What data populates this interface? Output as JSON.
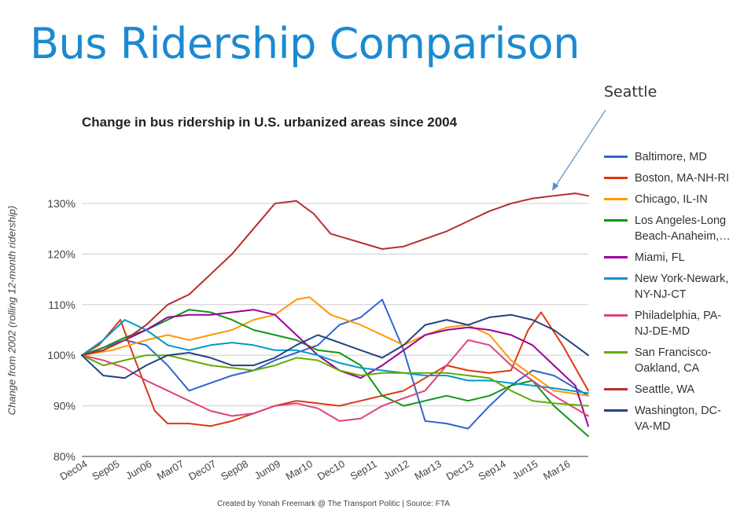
{
  "slide": {
    "title": "Bus Ridership Comparison",
    "callout_label": "Seattle"
  },
  "chart_data": {
    "type": "line",
    "title": "Change in bus ridership in U.S. urbanized areas since 2004",
    "xlabel": "",
    "ylabel": "Change from 2002 (rolling 12-month ridership)",
    "credit": "Created by Yonah Freemark @ The Transport Politic | Source: FTA",
    "ylim": [
      80,
      130
    ],
    "yticks": [
      80,
      90,
      100,
      110,
      120,
      130
    ],
    "ytick_labels": [
      "80%",
      "90%",
      "100%",
      "110%",
      "120%",
      "130%"
    ],
    "x_range": [
      0,
      11.8
    ],
    "x_ticks": [
      0,
      0.75,
      1.5,
      2.25,
      3,
      3.75,
      4.5,
      5.25,
      6,
      6.75,
      7.5,
      8.25,
      9,
      9.75,
      10.5,
      11.25
    ],
    "x_tick_labels": [
      "Dec04",
      "Sep05",
      "Jun06",
      "Mar07",
      "Dec07",
      "Sep08",
      "Jun09",
      "Mar10",
      "Dec10",
      "Sep11",
      "Jun12",
      "Mar13",
      "Dec13",
      "Sep14",
      "Jun15",
      "Mar16"
    ],
    "grid": true,
    "legend_position": "right",
    "annotation": {
      "text": "Seattle",
      "points_to": "Seattle, WA"
    },
    "series": [
      {
        "name": "Baltimore, MD",
        "color": "#3366cc",
        "x": [
          0,
          0.5,
          1,
          1.5,
          2,
          2.5,
          3,
          3.5,
          4,
          4.5,
          5,
          5.5,
          6,
          6.5,
          7,
          7.5,
          8,
          8.5,
          9,
          9.5,
          10,
          10.5,
          11,
          11.8
        ],
        "values": [
          100,
          101.5,
          103,
          102,
          98,
          93,
          94.5,
          96,
          97,
          99,
          100.5,
          102,
          106,
          107.5,
          111,
          101,
          87,
          86.5,
          85.5,
          90,
          94,
          97,
          96,
          92
        ]
      },
      {
        "name": "Boston, MA-NH-RI",
        "color": "#dc3912",
        "x": [
          0,
          0.4,
          0.9,
          1.2,
          1.7,
          2,
          2.5,
          3,
          3.5,
          4,
          4.5,
          5,
          5.5,
          6,
          6.5,
          7,
          7.5,
          8,
          8.5,
          9,
          9.5,
          10,
          10.4,
          10.7,
          11.2,
          11.8
        ],
        "values": [
          100,
          102,
          107,
          100,
          89,
          86.5,
          86.5,
          86,
          87,
          88.5,
          90,
          91,
          90.5,
          90,
          91,
          92,
          93,
          95.5,
          98,
          97,
          96.5,
          97,
          105,
          108.5,
          102,
          93
        ]
      },
      {
        "name": "Chicago, IL-IN",
        "color": "#ff9900",
        "x": [
          0,
          0.7,
          1.5,
          2,
          2.5,
          3,
          3.5,
          4,
          4.5,
          5,
          5.3,
          5.8,
          6.5,
          7,
          7.5,
          8,
          8.5,
          9,
          9.5,
          10,
          10.5,
          11,
          11.8
        ],
        "values": [
          100,
          101,
          103,
          104,
          103,
          104,
          105,
          107,
          108,
          111,
          111.5,
          108,
          106,
          104,
          102,
          104,
          105.5,
          106,
          104,
          99,
          96,
          93,
          92
        ]
      },
      {
        "name": "Los Angeles-Long\nBeach-Anaheim,…",
        "color": "#109618",
        "x": [
          0,
          0.5,
          1,
          1.5,
          2,
          2.5,
          3,
          3.5,
          4,
          4.5,
          5,
          5.5,
          6,
          6.5,
          7,
          7.5,
          8,
          8.5,
          9,
          9.5,
          10,
          10.5,
          11,
          11.8
        ],
        "values": [
          100,
          101.5,
          103.5,
          105,
          107,
          109,
          108.5,
          107,
          105,
          104,
          103,
          101,
          100.5,
          98,
          92,
          90,
          91,
          92,
          91,
          92,
          94,
          95,
          90,
          84
        ]
      },
      {
        "name": "Miami, FL",
        "color": "#990099",
        "x": [
          0,
          0.5,
          1,
          1.5,
          2,
          2.5,
          3,
          3.5,
          4,
          4.5,
          5,
          5.5,
          6,
          6.5,
          7,
          7.5,
          8,
          8.5,
          9,
          9.5,
          10,
          10.5,
          11,
          11.5,
          11.8
        ],
        "values": [
          100,
          101,
          103,
          105,
          107.5,
          108,
          108,
          108.5,
          109,
          108,
          104,
          100,
          97,
          95.5,
          98,
          101,
          104,
          105,
          105.5,
          105,
          104,
          102,
          98,
          94,
          86
        ]
      },
      {
        "name": "New York-Newark,\nNY-NJ-CT",
        "color": "#0099c6",
        "x": [
          0,
          0.5,
          1,
          1.5,
          2,
          2.5,
          3,
          3.5,
          4,
          4.5,
          5,
          5.5,
          6,
          6.5,
          7,
          7.5,
          8,
          8.5,
          9,
          9.5,
          10,
          10.5,
          11,
          11.8
        ],
        "values": [
          100,
          103,
          107,
          105,
          102,
          101,
          102,
          102.5,
          102,
          101,
          101,
          100,
          98.5,
          97.5,
          97,
          96.5,
          96,
          96,
          95,
          95,
          94.5,
          94,
          93.5,
          92.5
        ]
      },
      {
        "name": "Philadelphia, PA-\nNJ-DE-MD",
        "color": "#dd4477",
        "x": [
          0,
          0.5,
          1,
          1.5,
          2,
          2.5,
          3,
          3.5,
          4,
          4.5,
          5,
          5.5,
          6,
          6.5,
          7,
          7.5,
          8,
          8.5,
          9,
          9.5,
          10,
          10.5,
          11,
          11.8
        ],
        "values": [
          100,
          99,
          97.5,
          95,
          93,
          91,
          89,
          88,
          88.5,
          90,
          90.5,
          89.5,
          87,
          87.5,
          90,
          91.5,
          93,
          98,
          103,
          102,
          98,
          95,
          92,
          88
        ]
      },
      {
        "name": "San Francisco-\nOakland, CA",
        "color": "#66aa00",
        "x": [
          0,
          0.5,
          1,
          1.5,
          2,
          2.5,
          3,
          3.5,
          4,
          4.5,
          5,
          5.5,
          6,
          6.5,
          7,
          7.5,
          8,
          8.5,
          9,
          9.5,
          10,
          10.5,
          11,
          11.8
        ],
        "values": [
          100,
          98,
          99,
          100,
          100,
          99,
          98,
          97.5,
          97,
          98,
          99.5,
          99,
          97,
          96,
          96.5,
          96.5,
          96.5,
          96.5,
          96,
          95.5,
          93,
          91,
          90.5,
          90
        ]
      },
      {
        "name": "Seattle, WA",
        "color": "#b82e2e",
        "x": [
          0,
          0.5,
          1,
          1.5,
          2,
          2.5,
          3,
          3.5,
          4,
          4.5,
          5,
          5.4,
          5.8,
          6.2,
          6.6,
          7,
          7.5,
          8,
          8.5,
          9,
          9.5,
          10,
          10.5,
          11,
          11.5,
          11.8
        ],
        "values": [
          100,
          101,
          103,
          106,
          110,
          112,
          116,
          120,
          125,
          130,
          130.5,
          128,
          124,
          123,
          122,
          121,
          121.5,
          123,
          124.5,
          126.5,
          128.5,
          130,
          131,
          131.5,
          132,
          131.5
        ]
      },
      {
        "name": "Washington, DC-\nVA-MD",
        "color": "#22447f",
        "x": [
          0,
          0.5,
          1,
          1.5,
          2,
          2.5,
          3,
          3.5,
          4,
          4.5,
          5,
          5.5,
          6,
          6.5,
          7,
          7.5,
          8,
          8.5,
          9,
          9.5,
          10,
          10.5,
          11,
          11.8
        ],
        "values": [
          100,
          96,
          95.5,
          98,
          100,
          100.5,
          99.5,
          98,
          98,
          99.5,
          102,
          104,
          102.5,
          101,
          99.5,
          102,
          106,
          107,
          106,
          107.5,
          108,
          107,
          105,
          100
        ]
      }
    ]
  }
}
